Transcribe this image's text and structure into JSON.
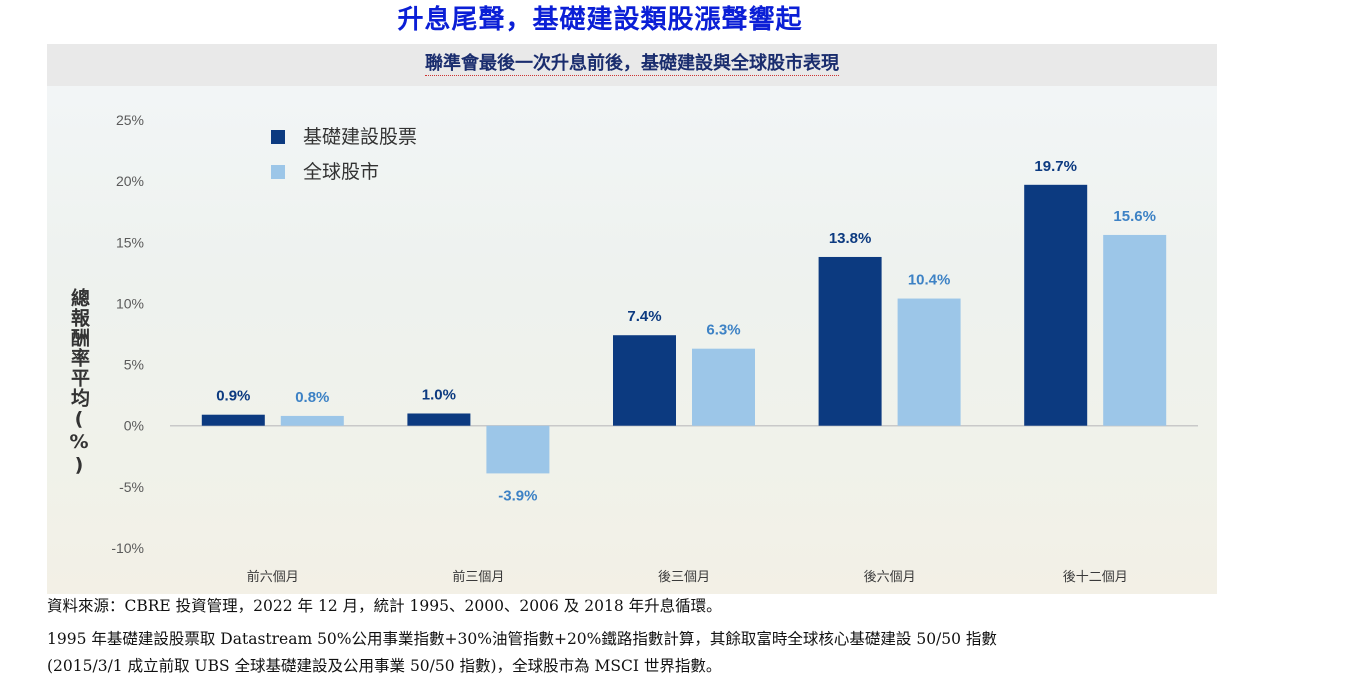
{
  "title": "升息尾聲，基礎建設類股漲聲響起",
  "subtitle": "聯準會最後一次升息前後，基礎建設與全球股市表現",
  "colors": {
    "infra": "#0c3a80",
    "global": "#9cc6e8",
    "title": "#0b1fd6",
    "negative_label": "#3d82c5"
  },
  "chart_data": {
    "type": "bar",
    "categories": [
      "前六個月",
      "前三個月",
      "後三個月",
      "後六個月",
      "後十二個月"
    ],
    "series": [
      {
        "name": "基礎建設股票",
        "values": [
          0.9,
          1.0,
          7.4,
          13.8,
          19.7
        ],
        "labels": [
          "0.9%",
          "1.0%",
          "7.4%",
          "13.8%",
          "19.7%"
        ]
      },
      {
        "name": "全球股市",
        "values": [
          0.8,
          -3.9,
          6.3,
          10.4,
          15.6
        ],
        "labels": [
          "0.8%",
          "-3.9%",
          "6.3%",
          "10.4%",
          "15.6%"
        ]
      }
    ],
    "ylabel": "總報酬率平均(%)",
    "ylim": [
      -10,
      25
    ],
    "yticks": [
      25,
      20,
      15,
      10,
      5,
      0,
      -5,
      -10
    ],
    "ytick_labels": [
      "25%",
      "20%",
      "15%",
      "10%",
      "5%",
      "0%",
      "-5%",
      "-10%"
    ],
    "legend_position": "top-left",
    "grid": false
  },
  "notes": [
    "資料來源：CBRE 投資管理，2022 年 12 月，統計 1995、2000、2006 及 2018 年升息循環。",
    "1995 年基礎建設股票取 Datastream 50%公用事業指數+30%油管指數+20%鐵路指數計算，其餘取富時全球核心基礎建設 50/50 指數",
    "(2015/3/1 成立前取 UBS 全球基礎建設及公用事業 50/50 指數)，全球股市為 MSCI 世界指數。"
  ]
}
